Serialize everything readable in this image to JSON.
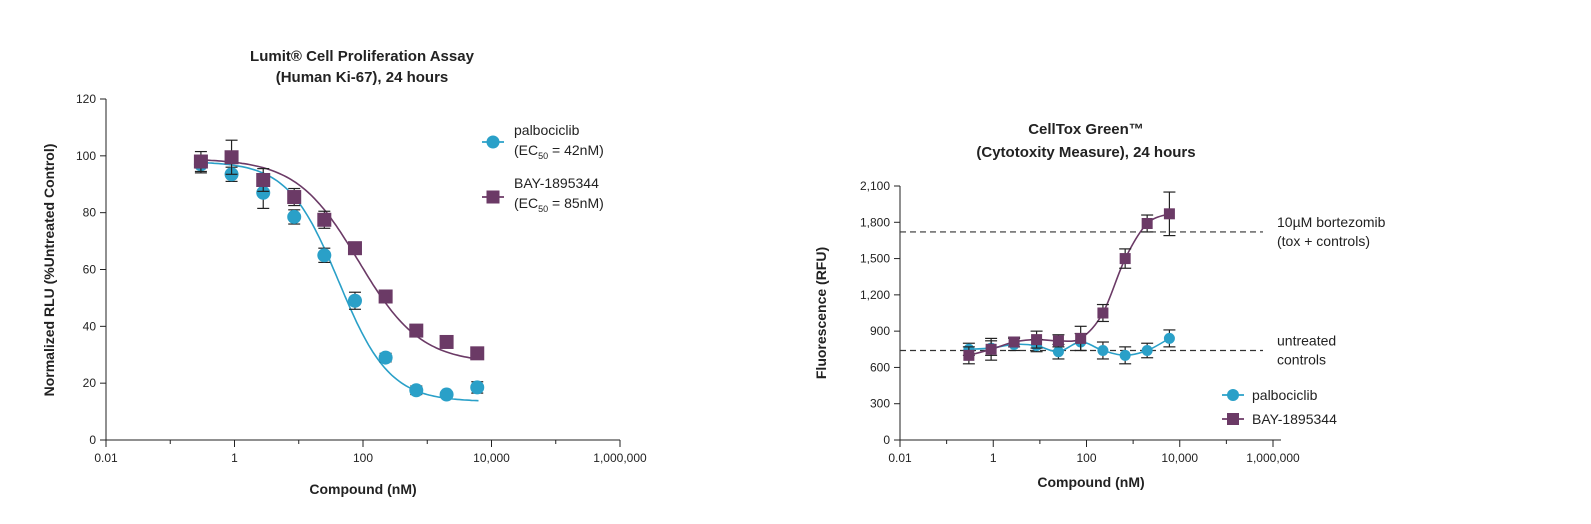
{
  "chart_data": [
    {
      "type": "scatter",
      "title": [
        "Lumit® Cell Proliferation Assay",
        "(Human Ki-67), 24 hours"
      ],
      "xlabel": "Compound (nM)",
      "ylabel": "Normalized RLU (%Untreated Control)",
      "xscale": "log",
      "xlim": [
        0.01,
        1000000
      ],
      "xticks": [
        0.01,
        1,
        100,
        10000,
        1000000
      ],
      "xtick_labels": [
        "0.01",
        "1",
        "100",
        "10,000",
        "1,000,000"
      ],
      "ylim": [
        0,
        120
      ],
      "yticks": [
        0,
        20,
        40,
        60,
        80,
        100,
        120
      ],
      "ytick_labels": [
        "0",
        "20",
        "40",
        "60",
        "80",
        "100",
        "120"
      ],
      "legend_position": "top-right",
      "series": [
        {
          "name": "palbociclib",
          "legend_sub": "(EC50 = 42nM)",
          "marker": "circle",
          "color": "#2aa0c8",
          "x": [
            0.3,
            0.9,
            2.8,
            8.5,
            25,
            75,
            225,
            675,
            2000,
            6000
          ],
          "y": [
            97,
            93.5,
            87,
            78.5,
            65,
            49,
            29,
            17.5,
            16,
            18.5
          ],
          "err": [
            3,
            2.5,
            5.5,
            2.5,
            2.5,
            3,
            1.5,
            1.5,
            1,
            2
          ],
          "fit": {
            "top": 98,
            "bottom": 13.5,
            "ec50": 42,
            "hill": 1.1
          }
        },
        {
          "name": "BAY-1895344",
          "legend_sub": "(EC50 = 85nM)",
          "marker": "square",
          "color": "#6b3a66",
          "x": [
            0.3,
            0.9,
            2.8,
            8.5,
            25,
            75,
            225,
            675,
            2000,
            6000
          ],
          "y": [
            98,
            99.5,
            91.5,
            85.5,
            77.5,
            67.5,
            50.5,
            38.5,
            34.5,
            30.5
          ],
          "err": [
            3.5,
            6,
            4,
            3,
            3,
            2,
            1.5,
            2,
            1.5,
            1.5
          ],
          "fit": {
            "top": 99,
            "bottom": 27,
            "ec50": 85,
            "hill": 0.9
          }
        }
      ]
    },
    {
      "type": "scatter",
      "title": [
        "CellTox Green™",
        "(Cytotoxity Measure), 24 hours"
      ],
      "xlabel": "Compound (nM)",
      "ylabel": "Fluorescence (RFU)",
      "xscale": "log",
      "xlim": [
        0.01,
        1000000
      ],
      "xticks": [
        0.01,
        1,
        100,
        10000,
        1000000
      ],
      "xtick_labels": [
        "0.01",
        "1",
        "100",
        "10,000",
        "1,000,000"
      ],
      "ylim": [
        0,
        2100
      ],
      "yticks": [
        0,
        300,
        600,
        900,
        1200,
        1500,
        1800,
        2100
      ],
      "ytick_labels": [
        "0",
        "300",
        "600",
        "900",
        "1,200",
        "1,500",
        "1,800",
        "2,100"
      ],
      "legend_position": "bottom-right",
      "reference_lines": [
        {
          "y": 1720,
          "label": [
            "10µM bortezomib",
            "(tox + controls)"
          ]
        },
        {
          "y": 740,
          "label": [
            "untreated",
            "controls"
          ]
        }
      ],
      "series": [
        {
          "name": "palbociclib",
          "marker": "circle",
          "color": "#2aa0c8",
          "x": [
            0.3,
            0.9,
            2.8,
            8.5,
            25,
            75,
            225,
            675,
            2000,
            6000
          ],
          "y": [
            750,
            760,
            790,
            780,
            730,
            810,
            740,
            700,
            740,
            840
          ],
          "err": [
            50,
            60,
            50,
            50,
            60,
            70,
            70,
            70,
            60,
            70
          ]
        },
        {
          "name": "BAY-1895344",
          "marker": "square",
          "color": "#6b3a66",
          "x": [
            0.3,
            0.9,
            2.8,
            8.5,
            25,
            75,
            225,
            675,
            2000,
            6000
          ],
          "y": [
            700,
            750,
            810,
            830,
            820,
            840,
            1050,
            1500,
            1790,
            1870
          ],
          "err": [
            70,
            90,
            40,
            70,
            50,
            100,
            70,
            80,
            70,
            180
          ]
        }
      ]
    }
  ]
}
